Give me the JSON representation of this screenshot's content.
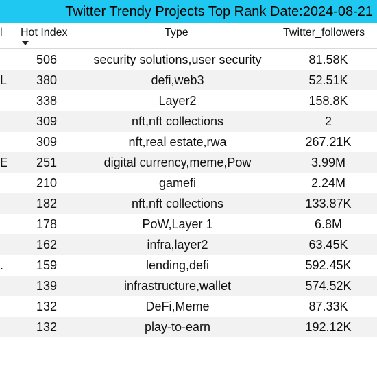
{
  "title": "Twitter Trendy Projects Top Rank Date:2024-08-21",
  "columns": {
    "name_fragment": "l",
    "hot_index": "Hot Index",
    "type": "Type",
    "followers": "Twitter_followers"
  },
  "sort": {
    "column": "Hot Index",
    "direction": "descending",
    "icon": "sort-desc-icon"
  },
  "colors": {
    "title_bg": "#1ec8f0",
    "alt_row": "#f2f2f2"
  },
  "rows": [
    {
      "name": "",
      "hot": "506",
      "type": "security solutions,user security",
      "followers": "81.58K"
    },
    {
      "name": "L",
      "hot": "380",
      "type": "defi,web3",
      "followers": "52.51K"
    },
    {
      "name": "",
      "hot": "338",
      "type": "Layer2",
      "followers": "158.8K"
    },
    {
      "name": "",
      "hot": "309",
      "type": "nft,nft collections",
      "followers": "2"
    },
    {
      "name": "",
      "hot": "309",
      "type": "nft,real estate,rwa",
      "followers": "267.21K"
    },
    {
      "name": "E",
      "hot": "251",
      "type": "digital currency,meme,Pow",
      "followers": "3.99M"
    },
    {
      "name": "",
      "hot": "210",
      "type": "gamefi",
      "followers": "2.24M"
    },
    {
      "name": "",
      "hot": "182",
      "type": "nft,nft collections",
      "followers": "133.87K"
    },
    {
      "name": "",
      "hot": "178",
      "type": "PoW,Layer 1",
      "followers": "6.8M"
    },
    {
      "name": "",
      "hot": "162",
      "type": "infra,layer2",
      "followers": "63.45K"
    },
    {
      "name": ".",
      "hot": "159",
      "type": "lending,defi",
      "followers": "592.45K"
    },
    {
      "name": "",
      "hot": "139",
      "type": "infrastructure,wallet",
      "followers": "574.52K"
    },
    {
      "name": "",
      "hot": "132",
      "type": "DeFi,Meme",
      "followers": "87.33K"
    },
    {
      "name": "",
      "hot": "132",
      "type": "play-to-earn",
      "followers": "192.12K"
    }
  ]
}
